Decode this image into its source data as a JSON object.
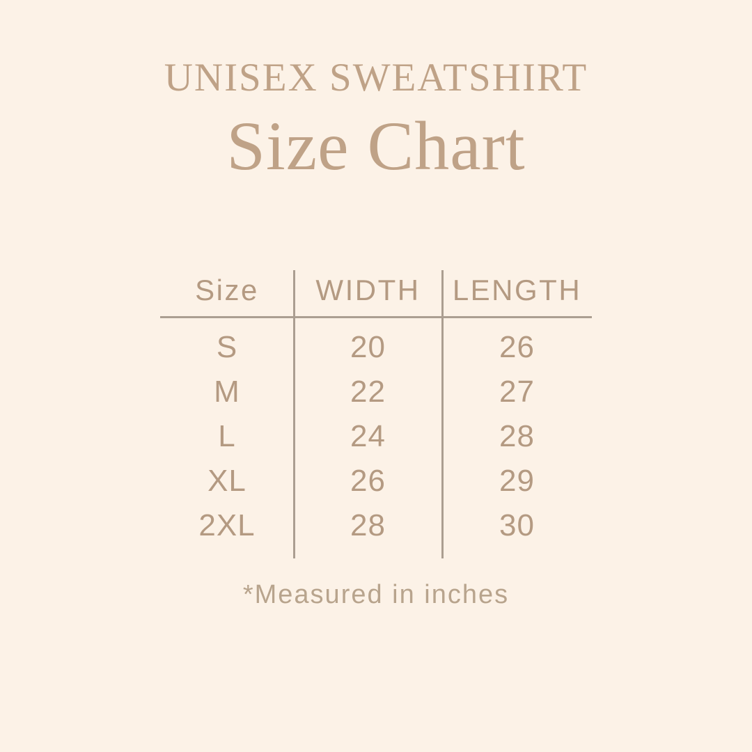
{
  "page": {
    "title_line1": "UNISEX SWEATSHIRT",
    "title_line2": "Size Chart",
    "footnote": "*Measured in inches"
  },
  "chart_data": {
    "type": "table",
    "title": "UNISEX SWEATSHIRT Size Chart",
    "columns": [
      "Size",
      "WIDTH",
      "LENGTH"
    ],
    "rows": [
      [
        "S",
        "20",
        "26"
      ],
      [
        "M",
        "22",
        "27"
      ],
      [
        "L",
        "24",
        "28"
      ],
      [
        "XL",
        "26",
        "29"
      ],
      [
        "2XL",
        "28",
        "30"
      ]
    ],
    "note": "*Measured in inches"
  },
  "colors": {
    "background": "#fcf2e7",
    "title": "#bfa287",
    "table_text": "#b49a82",
    "line": "#ab9e91",
    "footnote": "#b8a48d"
  }
}
